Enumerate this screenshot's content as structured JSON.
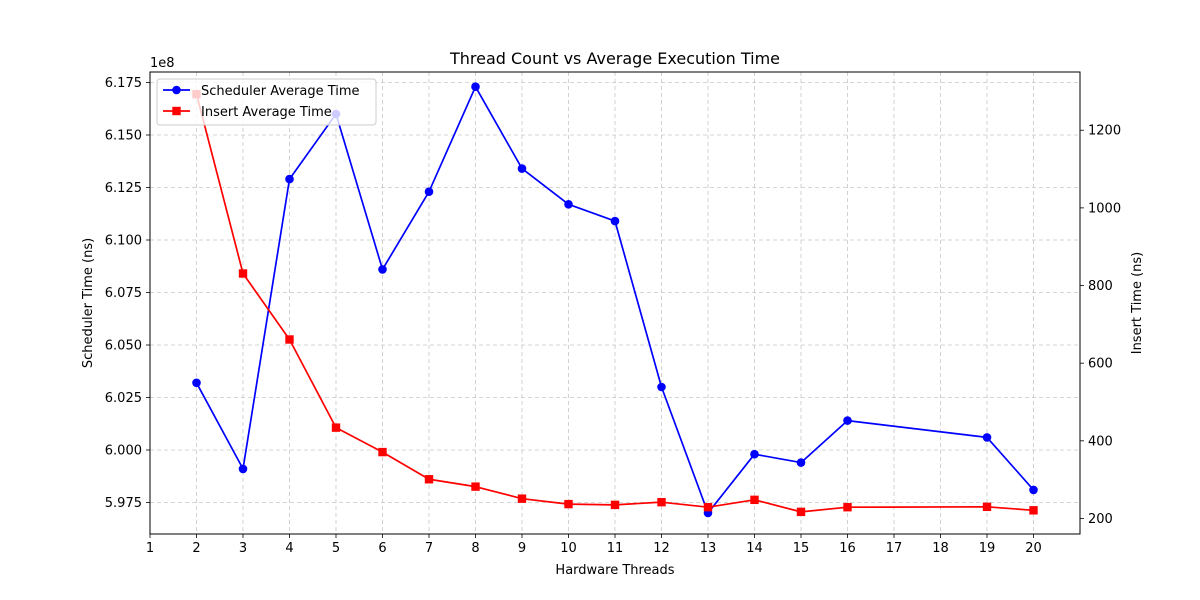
{
  "chart_data": {
    "type": "line",
    "title": "Thread Count vs Average Execution Time",
    "xlabel": "Hardware Threads",
    "ylabel_left": "Scheduler Time (ns)",
    "ylabel_right": "Insert Time (ns)",
    "y_left_offset_label": "1e8",
    "x_ticks": [
      "1",
      "2",
      "3",
      "4",
      "5",
      "6",
      "7",
      "8",
      "9",
      "10",
      "11",
      "12",
      "13",
      "14",
      "15",
      "16",
      "17",
      "18",
      "19",
      "20"
    ],
    "xlim": [
      1,
      21
    ],
    "y_left_lim": [
      5.96,
      6.18
    ],
    "y_left_ticks": [
      5.975,
      6.0,
      6.025,
      6.05,
      6.075,
      6.1,
      6.125,
      6.15,
      6.175
    ],
    "y_left_tick_labels": [
      "5.975",
      "6.000",
      "6.025",
      "6.050",
      "6.075",
      "6.100",
      "6.125",
      "6.150",
      "6.175"
    ],
    "y_right_lim": [
      160,
      1350
    ],
    "y_right_ticks": [
      200,
      400,
      600,
      800,
      1000,
      1200
    ],
    "y_right_tick_labels": [
      "200",
      "400",
      "600",
      "800",
      "1000",
      "1200"
    ],
    "grid": true,
    "legend_position": "top-left",
    "series": [
      {
        "name": "Scheduler Average Time",
        "axis": "left",
        "color": "#0000ff",
        "marker": "circle",
        "x": [
          2,
          3,
          4,
          5,
          6,
          7,
          8,
          9,
          10,
          11,
          12,
          13,
          14,
          15,
          16,
          19,
          20
        ],
        "values": [
          6.032,
          5.991,
          6.129,
          6.16,
          6.086,
          6.123,
          6.173,
          6.134,
          6.117,
          6.109,
          6.03,
          5.97,
          5.998,
          5.994,
          6.014,
          6.006,
          5.981
        ]
      },
      {
        "name": "Insert Average Time",
        "axis": "right",
        "color": "#ff0000",
        "marker": "square",
        "x": [
          2,
          3,
          4,
          5,
          6,
          7,
          8,
          9,
          10,
          11,
          12,
          13,
          14,
          15,
          16,
          19,
          20
        ],
        "values": [
          1293,
          831,
          661,
          434,
          371,
          301,
          282,
          251,
          237,
          235,
          242,
          229,
          248,
          217,
          229,
          230,
          221
        ]
      }
    ]
  }
}
